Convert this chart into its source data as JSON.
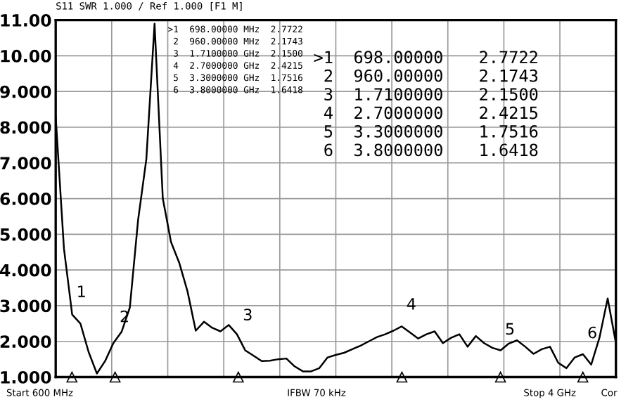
{
  "chart_data": {
    "type": "line",
    "title": "S11 SWR 1.000 / Ref 1.000 [F1 M]",
    "categories": [
      null,
      null,
      null,
      null,
      null,
      null,
      null,
      null,
      null,
      null,
      null,
      null,
      null,
      null,
      null,
      null,
      null,
      null,
      null,
      null,
      null,
      null,
      null,
      null,
      null,
      null,
      null,
      null,
      null,
      null,
      null,
      null,
      null,
      null,
      null,
      null,
      null,
      null,
      null,
      null,
      null,
      null,
      null,
      null,
      null,
      null,
      null,
      null,
      null,
      null,
      null,
      null,
      null,
      null,
      null,
      null,
      null,
      null,
      null,
      null,
      null,
      null,
      null,
      null,
      null,
      null,
      null,
      null,
      null
    ],
    "series": [
      {
        "color": "#000000",
        "values": [
          8.3,
          4.6,
          2.75,
          2.5,
          1.7,
          1.1,
          1.45,
          1.95,
          2.27,
          2.95,
          5.4,
          7.1,
          10.9,
          6.0,
          4.78,
          4.2,
          3.4,
          2.3,
          2.55,
          2.38,
          2.28,
          2.46,
          2.2,
          1.75,
          1.6,
          1.45,
          1.46,
          1.5,
          1.52,
          1.3,
          1.16,
          1.16,
          1.25,
          1.55,
          1.62,
          1.68,
          1.78,
          1.88,
          2.0,
          2.12,
          2.2,
          2.3,
          2.42,
          2.25,
          2.08,
          2.2,
          2.28,
          1.95,
          2.1,
          2.2,
          1.85,
          2.15,
          1.95,
          1.82,
          1.75,
          1.94,
          2.03,
          1.85,
          1.65,
          1.78,
          1.85,
          1.4,
          1.25,
          1.55,
          1.64,
          1.35,
          2.1,
          3.2,
          1.95
        ]
      }
    ],
    "ylim": [
      1,
      11
    ],
    "yticks": [
      {
        "value": 1,
        "label": "1.000"
      },
      {
        "value": 2,
        "label": "2.000"
      },
      {
        "value": 3,
        "label": "3.000"
      },
      {
        "value": 4,
        "label": "4.000"
      },
      {
        "value": 5,
        "label": "5.000"
      },
      {
        "value": 6,
        "label": "6.000"
      },
      {
        "value": 7,
        "label": "7.000"
      },
      {
        "value": 8,
        "label": "8.000"
      },
      {
        "value": 9,
        "label": "9.000"
      },
      {
        "value": 10,
        "label": "10.00"
      },
      {
        "value": 11,
        "label": "11.00"
      }
    ],
    "tick_labels": "y",
    "grid": true,
    "marker": "none",
    "line_style": "solid",
    "annotations": [
      ">1  698.00000 MHz  2.7722",
      " 2  960.00000 MHz  2.1743",
      " 3  1.7100000 GHz  2.1500",
      " 4  2.7000000 GHz  2.4215",
      " 5  3.3000000 GHz  1.7516",
      " 6  3.8000000 GHz  1.6418",
      ">1  698.00000",
      " 2  960.00000",
      " 3  1.7100000",
      " 4  2.7000000",
      " 5  3.3000000",
      " 6  3.8000000",
      "2.7722",
      "2.1743",
      "2.1500",
      "2.4215",
      "1.7516",
      "1.6418",
      "Start 600 MHz",
      "IFBW 70 kHz",
      "Stop 4 GHz",
      "Cor",
      "1",
      "2",
      "3",
      "4",
      "5",
      "6"
    ]
  }
}
